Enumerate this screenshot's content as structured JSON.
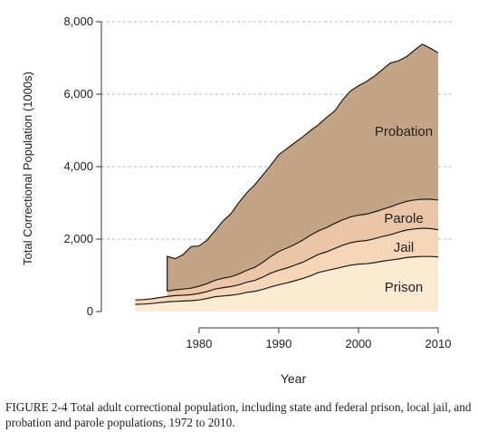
{
  "chart_data": {
    "type": "area",
    "stacked": true,
    "xlabel": "Year",
    "ylabel": "Total Correctional Population (1000s)",
    "xlim": [
      1971,
      2011
    ],
    "ylim": [
      0,
      8000
    ],
    "xticks": [
      1980,
      1990,
      2000,
      2010
    ],
    "yticks": [
      0,
      2000,
      4000,
      6000,
      8000
    ],
    "ytick_labels": [
      "0",
      "2,000",
      "4,000",
      "6,000",
      "8,000"
    ],
    "grid": "horizontal dashed",
    "colors": {
      "Prison": "#faebd2",
      "Jail": "#f6d6b8",
      "Parole": "#ebc5a8",
      "Probation": "#c4a487"
    },
    "series": [
      {
        "name": "Prison",
        "x": [
          1972,
          1973,
          1974,
          1975,
          1976,
          1977,
          1978,
          1979,
          1980,
          1981,
          1982,
          1983,
          1984,
          1985,
          1986,
          1987,
          1988,
          1989,
          1990,
          1991,
          1992,
          1993,
          1994,
          1995,
          1996,
          1997,
          1998,
          1999,
          2000,
          2001,
          2002,
          2003,
          2004,
          2005,
          2006,
          2007,
          2008,
          2009,
          2010
        ],
        "values": [
          200,
          205,
          220,
          245,
          265,
          280,
          290,
          300,
          320,
          360,
          410,
          430,
          450,
          480,
          530,
          560,
          610,
          680,
          740,
          790,
          850,
          910,
          990,
          1080,
          1130,
          1180,
          1230,
          1280,
          1310,
          1320,
          1350,
          1390,
          1420,
          1450,
          1490,
          1510,
          1520,
          1520,
          1510
        ]
      },
      {
        "name": "Jail",
        "x": [
          1972,
          1973,
          1974,
          1975,
          1976,
          1977,
          1978,
          1979,
          1980,
          1981,
          1982,
          1983,
          1984,
          1985,
          1986,
          1987,
          1988,
          1989,
          1990,
          1991,
          1992,
          1993,
          1994,
          1995,
          1996,
          1997,
          1998,
          1999,
          2000,
          2001,
          2002,
          2003,
          2004,
          2005,
          2006,
          2007,
          2008,
          2009,
          2010
        ],
        "values": [
          120,
          125,
          130,
          140,
          150,
          160,
          160,
          165,
          180,
          190,
          210,
          230,
          240,
          260,
          280,
          300,
          340,
          380,
          400,
          410,
          430,
          450,
          480,
          500,
          520,
          560,
          600,
          620,
          630,
          640,
          660,
          680,
          700,
          740,
          760,
          770,
          780,
          770,
          750
        ]
      },
      {
        "name": "Parole",
        "x": [
          1976,
          1977,
          1978,
          1979,
          1980,
          1981,
          1982,
          1983,
          1984,
          1985,
          1986,
          1987,
          1988,
          1989,
          1990,
          1991,
          1992,
          1993,
          1994,
          1995,
          1996,
          1997,
          1998,
          1999,
          2000,
          2001,
          2002,
          2003,
          2004,
          2005,
          2006,
          2007,
          2008,
          2009,
          2010
        ],
        "values": [
          150,
          160,
          170,
          180,
          200,
          220,
          240,
          260,
          270,
          300,
          330,
          360,
          410,
          460,
          520,
          550,
          570,
          610,
          640,
          650,
          670,
          690,
          700,
          710,
          720,
          730,
          740,
          750,
          770,
          780,
          790,
          800,
          800,
          810,
          820
        ]
      },
      {
        "name": "Probation",
        "x": [
          1976,
          1977,
          1978,
          1979,
          1980,
          1981,
          1982,
          1983,
          1984,
          1985,
          1986,
          1987,
          1988,
          1989,
          1990,
          1991,
          1992,
          1993,
          1994,
          1995,
          1996,
          1997,
          1998,
          1999,
          2000,
          2001,
          2002,
          2003,
          2004,
          2005,
          2006,
          2007,
          2008,
          2009,
          2010
        ],
        "values": [
          960,
          860,
          950,
          1150,
          1110,
          1200,
          1370,
          1580,
          1740,
          1970,
          2140,
          2280,
          2410,
          2520,
          2670,
          2740,
          2810,
          2850,
          2890,
          2930,
          3040,
          3100,
          3310,
          3480,
          3570,
          3660,
          3750,
          3860,
          3970,
          3950,
          3990,
          4130,
          4280,
          4170,
          4060
        ]
      }
    ]
  },
  "caption": "FIGURE 2-4 Total adult correctional population, including state and federal prison, local jail, and probation and parole populations, 1972 to 2010."
}
